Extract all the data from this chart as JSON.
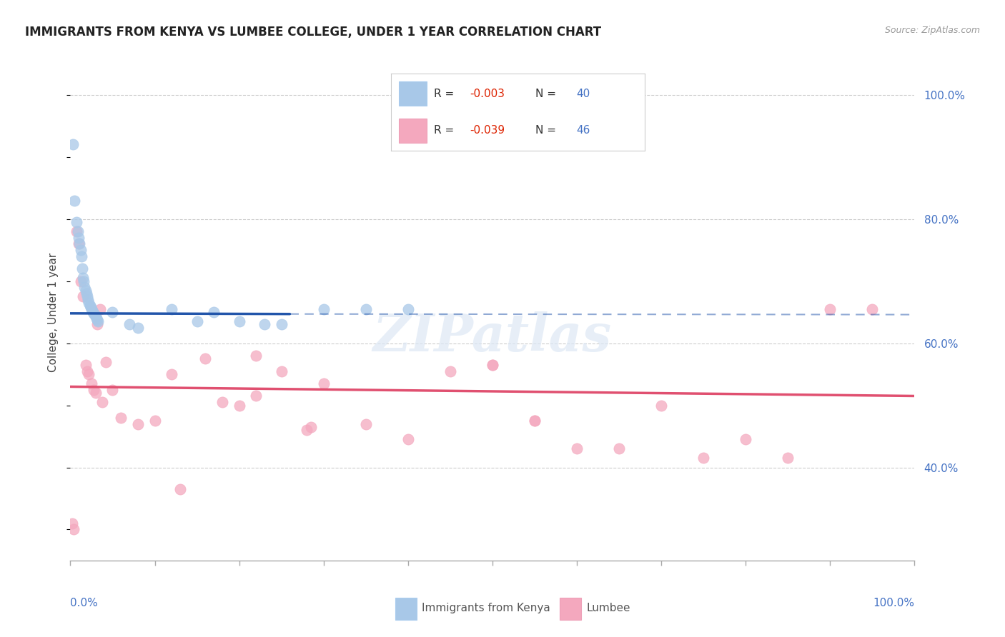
{
  "title": "IMMIGRANTS FROM KENYA VS LUMBEE COLLEGE, UNDER 1 YEAR CORRELATION CHART",
  "source": "Source: ZipAtlas.com",
  "ylabel": "College, Under 1 year",
  "color_kenya": "#a8c8e8",
  "color_lumbee": "#f4a8be",
  "color_kenya_line": "#2255aa",
  "color_lumbee_line": "#e05070",
  "color_axis_blue": "#4472c4",
  "color_red": "#dd2200",
  "color_grid": "#cccccc",
  "kenya_x": [
    0.3,
    0.5,
    0.7,
    0.9,
    1.0,
    1.1,
    1.2,
    1.3,
    1.4,
    1.5,
    1.6,
    1.7,
    1.8,
    1.9,
    2.0,
    2.1,
    2.2,
    2.3,
    2.4,
    2.5,
    2.6,
    2.7,
    2.8,
    2.9,
    3.0,
    3.1,
    3.2,
    3.3,
    5.0,
    7.0,
    8.0,
    12.0,
    15.0,
    17.0,
    20.0,
    23.0,
    25.0,
    30.0,
    35.0,
    40.0
  ],
  "kenya_y": [
    92.0,
    83.0,
    79.5,
    78.0,
    77.0,
    76.0,
    75.0,
    74.0,
    72.0,
    70.5,
    70.0,
    69.0,
    68.5,
    68.0,
    67.5,
    67.0,
    66.5,
    66.0,
    65.8,
    65.5,
    65.2,
    65.0,
    64.8,
    64.5,
    64.3,
    64.0,
    63.8,
    63.5,
    65.0,
    63.0,
    62.5,
    65.5,
    63.5,
    65.0,
    63.5,
    63.0,
    63.0,
    65.5,
    65.5,
    65.5
  ],
  "lumbee_x": [
    0.2,
    0.4,
    0.7,
    1.0,
    1.2,
    1.5,
    1.8,
    2.0,
    2.2,
    2.5,
    2.8,
    3.0,
    3.2,
    3.5,
    3.8,
    4.2,
    5.0,
    6.0,
    8.0,
    10.0,
    12.0,
    16.0,
    18.0,
    20.0,
    22.0,
    25.0,
    30.0,
    35.0,
    40.0,
    45.0,
    50.0,
    55.0,
    60.0,
    65.0,
    70.0,
    75.0,
    80.0,
    85.0,
    90.0,
    95.0,
    50.0,
    55.0,
    28.0,
    28.5,
    22.0,
    13.0
  ],
  "lumbee_y": [
    31.0,
    30.0,
    78.0,
    76.0,
    70.0,
    67.5,
    56.5,
    55.5,
    55.0,
    53.5,
    52.5,
    52.0,
    63.0,
    65.5,
    50.5,
    57.0,
    52.5,
    48.0,
    47.0,
    47.5,
    55.0,
    57.5,
    50.5,
    50.0,
    51.5,
    55.5,
    53.5,
    47.0,
    44.5,
    55.5,
    56.5,
    47.5,
    43.0,
    43.0,
    50.0,
    41.5,
    44.5,
    41.5,
    65.5,
    65.5,
    56.5,
    47.5,
    46.0,
    46.5,
    58.0,
    36.5
  ],
  "kenya_line_x0": 0,
  "kenya_line_x1": 26,
  "kenya_line_y0": 64.8,
  "kenya_line_y1": 64.7,
  "kenya_line_dash_x0": 26,
  "kenya_line_dash_x1": 100,
  "kenya_line_dash_y0": 64.7,
  "kenya_line_dash_y1": 64.6,
  "lumbee_line_x0": 0,
  "lumbee_line_x1": 100,
  "lumbee_line_y0": 53.0,
  "lumbee_line_y1": 51.5,
  "xlim": [
    0,
    100
  ],
  "ylim": [
    25,
    105
  ],
  "ytick_vals": [
    40,
    60,
    80,
    100
  ],
  "ytick_labels": [
    "40.0%",
    "60.0%",
    "80.0%",
    "100.0%"
  ],
  "legend_items": [
    {
      "label": "R = -0.003   N = 40",
      "color": "#a8c8e8"
    },
    {
      "label": "R = -0.039   N = 46",
      "color": "#f4a8be"
    }
  ],
  "bottom_legend": [
    "Immigrants from Kenya",
    "Lumbee"
  ]
}
